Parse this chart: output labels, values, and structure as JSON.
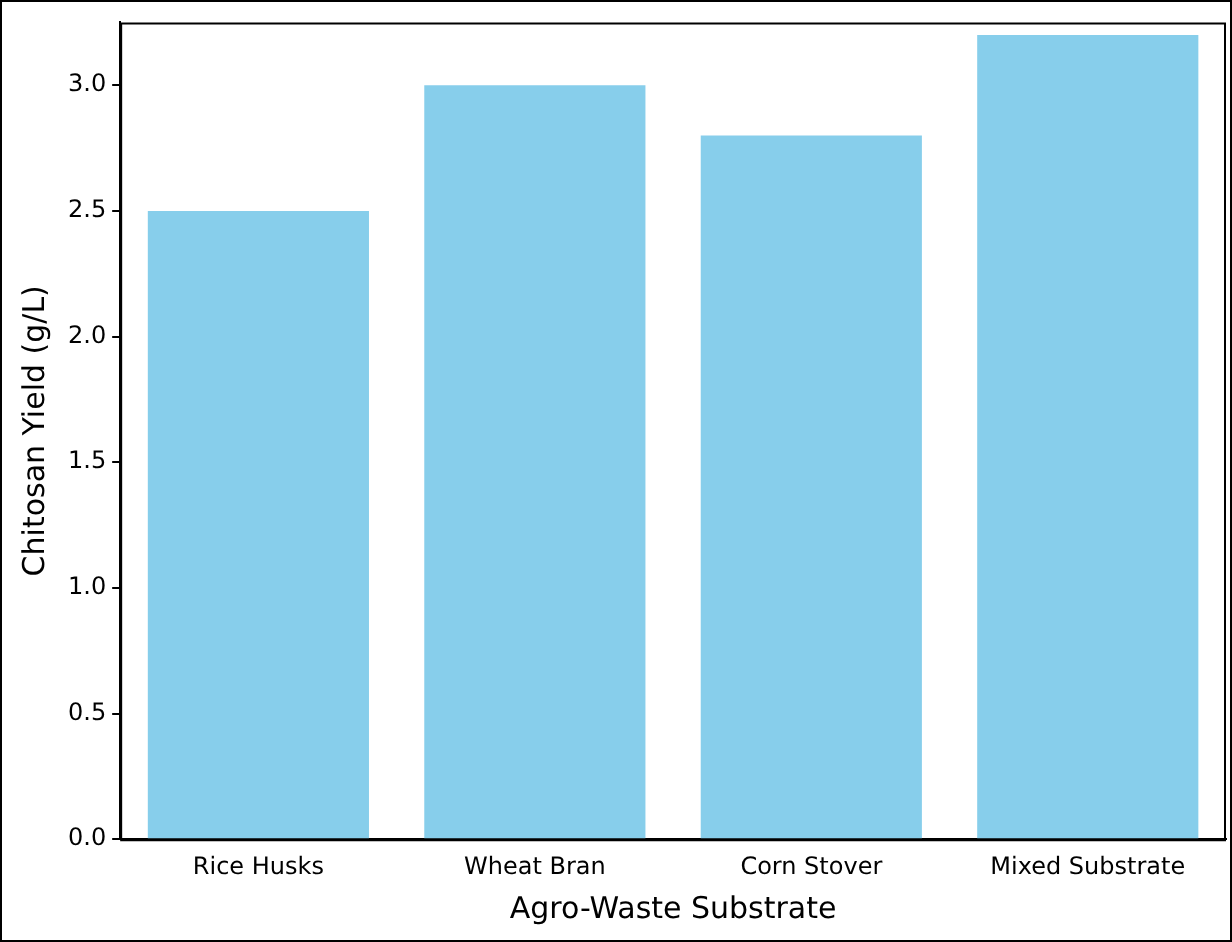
{
  "chart_data": {
    "type": "bar",
    "xlabel": "Agro-Waste Substrate",
    "ylabel": "Chitosan Yield (g/L)",
    "categories": [
      "Rice Husks",
      "Wheat Bran",
      "Corn Stover",
      "Mixed Substrate"
    ],
    "values": [
      2.5,
      3.0,
      2.8,
      3.2
    ],
    "color": "#87ceeb",
    "ylim": [
      0,
      3.25
    ],
    "yticks": [
      {
        "value": 0,
        "label": "0.0"
      },
      {
        "value": 0.5,
        "label": "0.5"
      },
      {
        "value": 1,
        "label": "1.0"
      },
      {
        "value": 1.5,
        "label": "1.5"
      },
      {
        "value": 2,
        "label": "2.0"
      },
      {
        "value": 2.5,
        "label": "2.5"
      },
      {
        "value": 3,
        "label": "3.0"
      }
    ],
    "grid": false,
    "legend": false
  }
}
